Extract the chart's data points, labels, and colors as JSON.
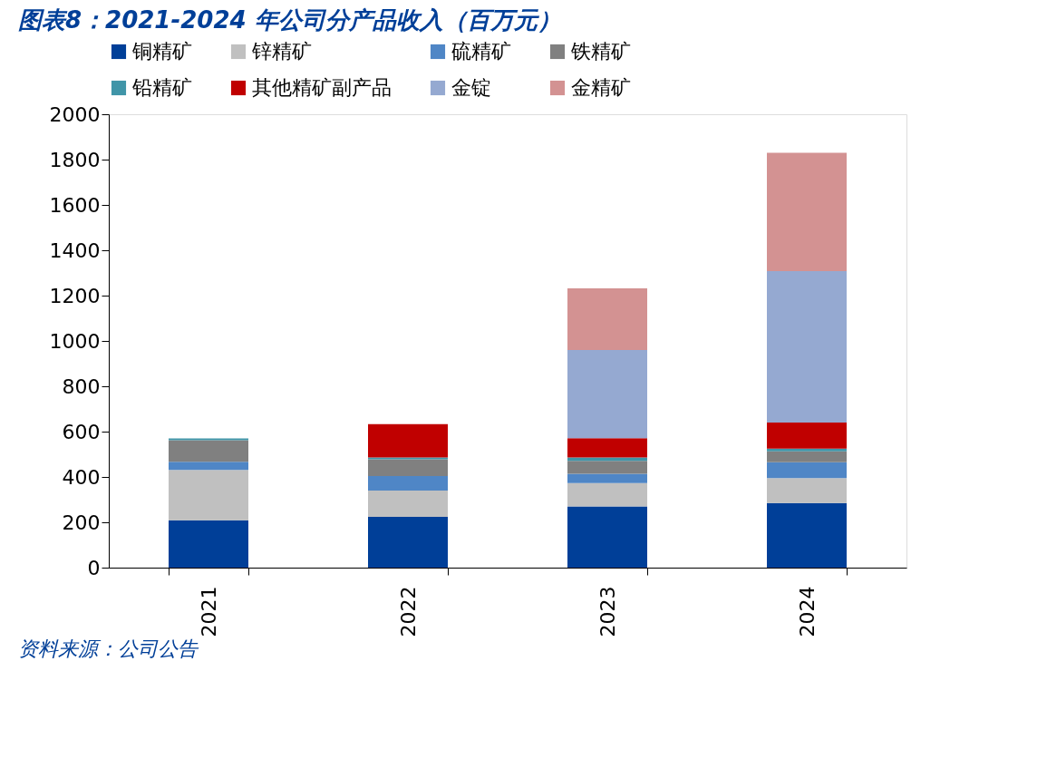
{
  "chart_data": {
    "type": "bar",
    "stacked": true,
    "title": "图表8：2021-2024 年公司分产品收入（百万元）",
    "categories": [
      "2021",
      "2022",
      "2023",
      "2024"
    ],
    "series": [
      {
        "name": "铜精矿",
        "color": "#003f98",
        "values": [
          209,
          224,
          270,
          285
        ]
      },
      {
        "name": "锌精矿",
        "color": "#c0c0c0",
        "values": [
          222,
          116,
          103,
          110
        ]
      },
      {
        "name": "硫精矿",
        "color": "#4f86c6",
        "values": [
          36,
          64,
          41,
          70
        ]
      },
      {
        "name": "铁精矿",
        "color": "#808080",
        "values": [
          95,
          74,
          57,
          48
        ]
      },
      {
        "name": "铅精矿",
        "color": "#4095a8",
        "values": [
          8,
          8,
          15,
          12
        ]
      },
      {
        "name": "其他精矿副产品",
        "color": "#c00000",
        "values": [
          null,
          147,
          85,
          115
        ]
      },
      {
        "name": "金锭",
        "color": "#95a9d1",
        "values": [
          null,
          null,
          389,
          668
        ]
      },
      {
        "name": "金精矿",
        "color": "#d39292",
        "values": [
          null,
          null,
          272,
          522
        ]
      }
    ],
    "ylim": [
      0,
      2000
    ],
    "yticks": [
      0,
      200,
      400,
      600,
      800,
      1000,
      1200,
      1400,
      1600,
      1800,
      2000
    ],
    "grid": false,
    "legend": "top",
    "annotations": [
      "资料来源：公司公告"
    ]
  }
}
